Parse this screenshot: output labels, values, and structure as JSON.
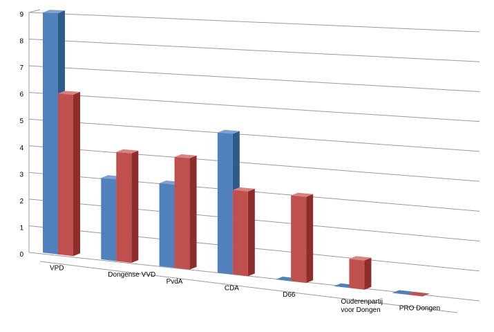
{
  "chart_data": {
    "type": "bar",
    "style": "3d-perspective",
    "categories": [
      "VPD",
      "Dongense VVD",
      "PvdA",
      "CDA",
      "D66",
      "Ouderenpartij voor Dongen",
      "PRO Dongen"
    ],
    "category_label_lines": [
      [
        "VPD"
      ],
      [
        "Dongense VVD"
      ],
      [
        "PvdA"
      ],
      [
        "CDA"
      ],
      [
        "D66"
      ],
      [
        "Ouderenpartij",
        "voor Dongen"
      ],
      [
        "PRO Dongen"
      ]
    ],
    "series": [
      {
        "values": [
          9,
          3,
          3,
          5,
          0,
          0,
          0
        ],
        "color": "#4F81BD",
        "side_color": "#2E5C8A",
        "top_color": "#7DA1D3"
      },
      {
        "values": [
          6,
          4,
          4,
          3,
          3,
          1,
          0
        ],
        "color": "#C0504D",
        "side_color": "#8E2E2C",
        "top_color": "#D98380"
      }
    ],
    "ylim": [
      0,
      9
    ],
    "yticks": [
      "0",
      "1",
      "2",
      "3",
      "4",
      "5",
      "6",
      "7",
      "8",
      "9"
    ],
    "grid": true,
    "legend": "none"
  }
}
